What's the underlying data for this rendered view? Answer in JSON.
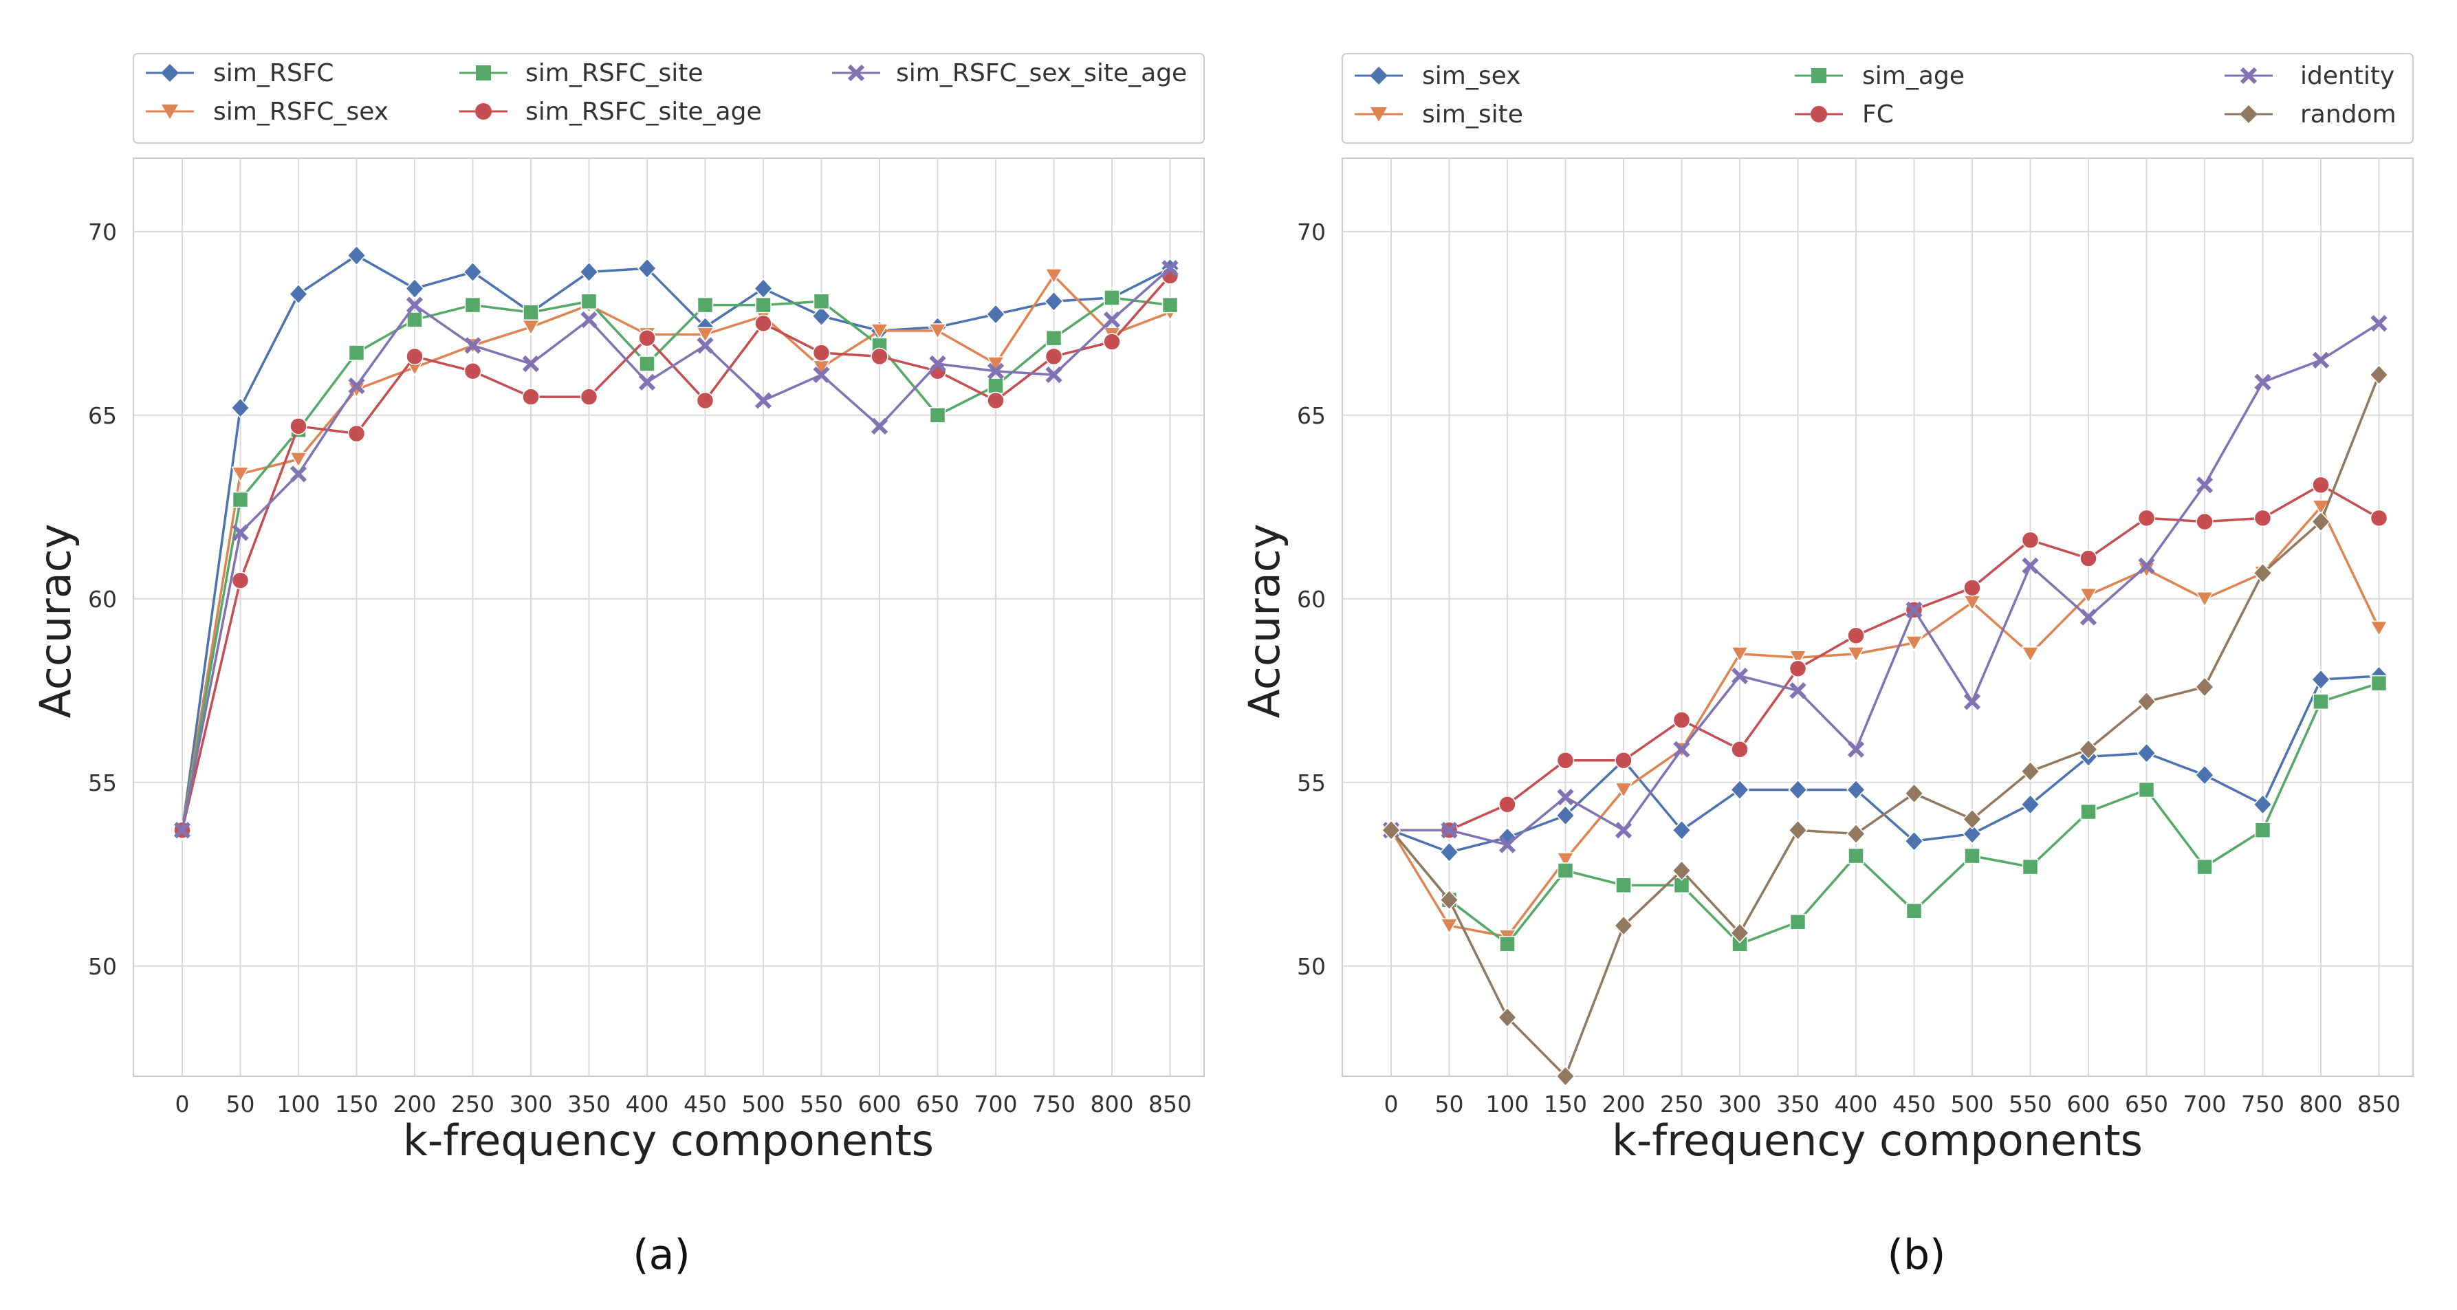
{
  "chart_data": [
    {
      "type": "line",
      "panel_caption": "(a)",
      "xlabel": "k-frequency components",
      "ylabel": "Accuracy",
      "x": [
        0,
        50,
        100,
        150,
        200,
        250,
        300,
        350,
        400,
        450,
        500,
        550,
        600,
        650,
        700,
        750,
        800,
        850
      ],
      "ylim": [
        47,
        72
      ],
      "yticks": [
        50,
        55,
        60,
        65,
        70
      ],
      "grid": true,
      "legend_position": "top",
      "series": [
        {
          "name": "sim_RSFC",
          "color": "#4c72b0",
          "marker": "diamond",
          "values": [
            53.7,
            65.2,
            68.3,
            69.35,
            68.45,
            68.9,
            67.8,
            68.9,
            69.0,
            67.4,
            68.45,
            67.7,
            67.3,
            67.4,
            67.75,
            68.1,
            68.2,
            69.0
          ]
        },
        {
          "name": "sim_RSFC_sex",
          "color": "#dd8452",
          "marker": "triangle-down",
          "values": [
            53.7,
            63.4,
            63.8,
            65.7,
            66.3,
            66.9,
            67.4,
            68.0,
            67.2,
            67.2,
            67.7,
            66.3,
            67.3,
            67.3,
            66.4,
            68.8,
            67.2,
            67.8
          ]
        },
        {
          "name": "sim_RSFC_site",
          "color": "#55a868",
          "marker": "square",
          "values": [
            53.7,
            62.7,
            64.6,
            66.7,
            67.6,
            68.0,
            67.8,
            68.1,
            66.4,
            68.0,
            68.0,
            68.1,
            66.9,
            65.0,
            65.8,
            67.1,
            68.2,
            68.0
          ]
        },
        {
          "name": "sim_RSFC_site_age",
          "color": "#c44e52",
          "marker": "circle",
          "values": [
            53.7,
            60.5,
            64.7,
            64.5,
            66.6,
            66.2,
            65.5,
            65.5,
            67.1,
            65.4,
            67.5,
            66.7,
            66.6,
            66.2,
            65.4,
            66.6,
            67.0,
            68.8
          ]
        },
        {
          "name": "sim_RSFC_sex_site_age",
          "color": "#8172b3",
          "marker": "x",
          "values": [
            53.7,
            61.8,
            63.4,
            65.8,
            68.0,
            66.9,
            66.4,
            67.6,
            65.9,
            66.9,
            65.4,
            66.1,
            64.7,
            66.4,
            66.2,
            66.1,
            67.6,
            69.0
          ]
        }
      ]
    },
    {
      "type": "line",
      "panel_caption": "(b)",
      "xlabel": "k-frequency components",
      "ylabel": "Accuracy",
      "x": [
        0,
        50,
        100,
        150,
        200,
        250,
        300,
        350,
        400,
        450,
        500,
        550,
        600,
        650,
        700,
        750,
        800,
        850
      ],
      "ylim": [
        47,
        72
      ],
      "yticks": [
        50,
        55,
        60,
        65,
        70
      ],
      "grid": true,
      "legend_position": "top",
      "series": [
        {
          "name": "sim_sex",
          "color": "#4c72b0",
          "marker": "diamond",
          "values": [
            53.7,
            53.1,
            53.5,
            54.1,
            55.6,
            53.7,
            54.8,
            54.8,
            54.8,
            53.4,
            53.6,
            54.4,
            55.7,
            55.8,
            55.2,
            54.4,
            57.8,
            57.9
          ]
        },
        {
          "name": "sim_site",
          "color": "#dd8452",
          "marker": "triangle-down",
          "values": [
            53.7,
            51.1,
            50.8,
            52.9,
            54.8,
            55.9,
            58.5,
            58.4,
            58.5,
            58.8,
            59.9,
            58.5,
            60.1,
            60.8,
            60.0,
            60.7,
            62.5,
            59.2
          ]
        },
        {
          "name": "sim_age",
          "color": "#55a868",
          "marker": "square",
          "values": [
            53.7,
            51.8,
            50.6,
            52.6,
            52.2,
            52.2,
            50.6,
            51.2,
            53.0,
            51.5,
            53.0,
            52.7,
            54.2,
            54.8,
            52.7,
            53.7,
            57.2,
            57.7
          ]
        },
        {
          "name": "FC",
          "color": "#c44e52",
          "marker": "circle",
          "values": [
            53.7,
            53.7,
            54.4,
            55.6,
            55.6,
            56.7,
            55.9,
            58.1,
            59.0,
            59.7,
            60.3,
            61.6,
            61.1,
            62.2,
            62.1,
            62.2,
            63.1,
            62.2
          ]
        },
        {
          "name": "identity",
          "color": "#8172b3",
          "marker": "x",
          "values": [
            53.7,
            53.7,
            53.3,
            54.6,
            53.7,
            55.9,
            57.9,
            57.5,
            55.9,
            59.7,
            57.2,
            60.9,
            59.5,
            60.9,
            63.1,
            65.9,
            66.5,
            67.5
          ]
        },
        {
          "name": "random",
          "color": "#937860",
          "marker": "diamond",
          "values": [
            53.7,
            51.8,
            48.6,
            47.0,
            51.1,
            52.6,
            50.9,
            53.7,
            53.6,
            54.7,
            54.0,
            55.3,
            55.9,
            57.2,
            57.6,
            60.7,
            62.1,
            66.1
          ]
        }
      ]
    }
  ]
}
